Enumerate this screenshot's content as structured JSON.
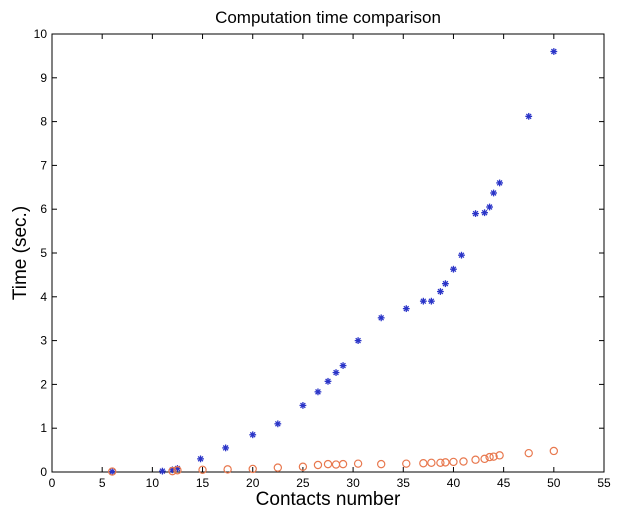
{
  "chart_data": {
    "type": "scatter",
    "title": "Computation time comparison",
    "xlabel": "Contacts number",
    "ylabel": "Time (sec.)",
    "xlim": [
      0,
      55
    ],
    "ylim": [
      0,
      10
    ],
    "xticks": [
      0,
      5,
      10,
      15,
      20,
      25,
      30,
      35,
      40,
      45,
      50,
      55
    ],
    "yticks": [
      0,
      1,
      2,
      3,
      4,
      5,
      6,
      7,
      8,
      9,
      10
    ],
    "grid": false,
    "legend": "none",
    "series": [
      {
        "marker": "asterisk",
        "color": "#2b35c8",
        "x": [
          6,
          11,
          12,
          12.5,
          14.8,
          17.3,
          20,
          22.5,
          25,
          26.5,
          27.5,
          28.3,
          29,
          30.5,
          32.8,
          35.3,
          37,
          37.8,
          38.7,
          39.2,
          40,
          40.8,
          42.2,
          43.1,
          43.6,
          44,
          44.6,
          47.5,
          50
        ],
        "y": [
          0.01,
          0.02,
          0.05,
          0.08,
          0.3,
          0.55,
          0.85,
          1.1,
          1.52,
          1.83,
          2.07,
          2.27,
          2.43,
          3.0,
          3.52,
          3.73,
          3.9,
          3.9,
          4.12,
          4.3,
          4.63,
          4.95,
          5.9,
          5.92,
          6.05,
          6.37,
          6.6,
          8.12,
          9.6
        ]
      },
      {
        "marker": "circle",
        "color": "#e8784e",
        "x": [
          6,
          12,
          12.5,
          15,
          17.5,
          20,
          22.5,
          25,
          26.5,
          27.5,
          28.3,
          29,
          30.5,
          32.8,
          35.3,
          37,
          37.8,
          38.7,
          39.2,
          40,
          41,
          42.2,
          43.1,
          43.6,
          44,
          44.6,
          47.5,
          50
        ],
        "y": [
          0.01,
          0.02,
          0.04,
          0.05,
          0.06,
          0.07,
          0.1,
          0.12,
          0.16,
          0.18,
          0.17,
          0.18,
          0.19,
          0.18,
          0.19,
          0.2,
          0.21,
          0.21,
          0.22,
          0.23,
          0.24,
          0.28,
          0.3,
          0.34,
          0.35,
          0.38,
          0.43,
          0.48
        ]
      }
    ]
  }
}
